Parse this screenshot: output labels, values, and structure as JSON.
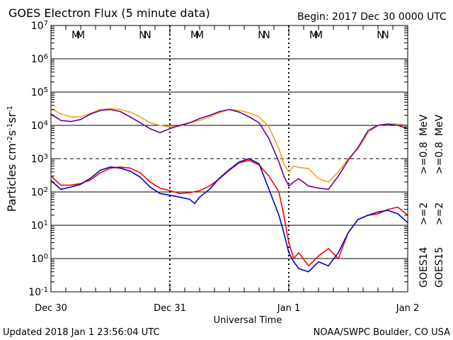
{
  "header": {
    "title": "GOES Electron Flux (5 minute data)",
    "begin": "Begin: 2017 Dec 30 0000 UTC"
  },
  "footer": {
    "updated": "Updated 2018 Jan  1 23:56:04 UTC",
    "credit": "NOAA/SWPC Boulder, CO USA"
  },
  "colors": {
    "goes14_ge2": "#ff0000",
    "goes15_ge2": "#0000cc",
    "goes14_ge08": "#f0a020",
    "goes15_ge08": "#660099",
    "eclipse_m": "#0000cc",
    "eclipse_n": "#0000cc",
    "eclipse_m2": "#ff0000",
    "eclipse_n2": "#ff0000"
  },
  "chart_data": {
    "type": "line",
    "title": "GOES Electron Flux (5 minute data)",
    "xlabel": "Universal Time",
    "ylabel": "Particles cm-2s-1sr-1",
    "y_scale": "log",
    "ylim": [
      0.1,
      10000000
    ],
    "xlim": [
      "2017-12-30 00:00",
      "2018-01-02 00:00"
    ],
    "y_ticks": [
      "10^-1",
      "10^0",
      "10^1",
      "10^2",
      "10^3",
      "10^4",
      "10^5",
      "10^6",
      "10^7"
    ],
    "x_ticks": [
      "Dec 30",
      "Dec 31",
      "Jan 1",
      "Jan 2"
    ],
    "threshold_line": 1000,
    "grid": "horizontal decade lines",
    "legend_position": "right",
    "eclipse_markers": [
      {
        "label": "M",
        "color": "blue",
        "time": "2017-12-30 05:00"
      },
      {
        "label": "M",
        "color": "red",
        "time": "2017-12-30 06:00"
      },
      {
        "label": "N",
        "color": "blue",
        "time": "2017-12-30 18:30"
      },
      {
        "label": "N",
        "color": "red",
        "time": "2017-12-30 19:30"
      },
      {
        "label": "M",
        "color": "blue",
        "time": "2017-12-31 05:00"
      },
      {
        "label": "M",
        "color": "red",
        "time": "2017-12-31 06:00"
      },
      {
        "label": "N",
        "color": "blue",
        "time": "2017-12-31 18:30"
      },
      {
        "label": "N",
        "color": "red",
        "time": "2017-12-31 19:30"
      },
      {
        "label": "M",
        "color": "blue",
        "time": "2018-01-01 05:00"
      },
      {
        "label": "M",
        "color": "red",
        "time": "2018-01-01 06:00"
      },
      {
        "label": "N",
        "color": "blue",
        "time": "2018-01-01 18:30"
      },
      {
        "label": "N",
        "color": "red",
        "time": "2018-01-01 19:30"
      }
    ],
    "legend": [
      {
        "satellite": "GOES14",
        "channel": ">=2",
        "unit": "MeV",
        "color": "#ff0000"
      },
      {
        "satellite": "GOES15",
        "channel": ">=2",
        "unit": "MeV",
        "color": "#0000cc"
      },
      {
        "satellite": "GOES14",
        "channel": ">=0.8",
        "unit": "MeV",
        "color": "#f0a020"
      },
      {
        "satellite": "GOES15",
        "channel": ">=0.8",
        "unit": "MeV",
        "color": "#660099"
      }
    ],
    "series": [
      {
        "name": "GOES14 >=2 MeV",
        "color": "#ff0000",
        "hours": [
          0,
          2,
          4,
          6,
          8,
          10,
          12,
          14,
          16,
          18,
          20,
          22,
          24,
          26,
          28,
          30,
          32,
          34,
          36,
          38,
          40,
          42,
          44,
          46,
          47,
          48,
          49,
          50,
          52,
          54,
          56,
          58,
          60,
          62,
          64,
          66,
          68,
          70,
          72
        ],
        "values": [
          300,
          160,
          160,
          180,
          230,
          380,
          520,
          560,
          520,
          380,
          200,
          130,
          110,
          90,
          95,
          110,
          150,
          250,
          450,
          750,
          900,
          650,
          300,
          100,
          20,
          3,
          1,
          1.5,
          0.6,
          1.2,
          2,
          1,
          6,
          15,
          20,
          22,
          30,
          35,
          20
        ]
      },
      {
        "name": "GOES15 >=2 MeV",
        "color": "#0000cc",
        "hours": [
          0,
          2,
          4,
          6,
          8,
          10,
          12,
          14,
          16,
          18,
          20,
          22,
          24,
          26,
          28,
          29,
          30,
          32,
          34,
          36,
          38,
          40,
          42,
          44,
          46,
          47,
          48,
          49,
          50,
          52,
          54,
          56,
          58,
          60,
          62,
          64,
          66,
          68,
          70,
          72
        ],
        "values": [
          220,
          120,
          140,
          170,
          260,
          450,
          560,
          520,
          420,
          280,
          140,
          90,
          80,
          70,
          60,
          45,
          70,
          120,
          260,
          470,
          800,
          1000,
          700,
          120,
          20,
          6,
          1.5,
          0.8,
          0.5,
          0.4,
          0.8,
          0.6,
          1.5,
          6,
          15,
          20,
          25,
          28,
          22,
          12
        ]
      },
      {
        "name": "GOES14 >=0.8 MeV",
        "color": "#f0a020",
        "hours": [
          0,
          2,
          4,
          6,
          8,
          10,
          12,
          14,
          16,
          18,
          20,
          22,
          24,
          26,
          28,
          30,
          32,
          34,
          36,
          38,
          40,
          42,
          44,
          46,
          47,
          48,
          49,
          50,
          52,
          54,
          56,
          58,
          60,
          62,
          64,
          66,
          68,
          70,
          72
        ],
        "values": [
          32000,
          22000,
          18000,
          18000,
          23000,
          30000,
          32000,
          30000,
          25000,
          18000,
          12000,
          10000,
          9000,
          9500,
          12000,
          14000,
          18000,
          24000,
          30000,
          28000,
          24000,
          18000,
          9000,
          2000,
          700,
          400,
          600,
          550,
          500,
          250,
          200,
          400,
          1000,
          2000,
          6000,
          10000,
          11000,
          11000,
          10000
        ]
      },
      {
        "name": "GOES15 >=0.8 MeV",
        "color": "#660099",
        "hours": [
          0,
          2,
          4,
          6,
          8,
          10,
          12,
          14,
          16,
          18,
          20,
          22,
          24,
          26,
          28,
          30,
          32,
          34,
          36,
          38,
          40,
          42,
          44,
          46,
          47,
          48,
          49,
          50,
          52,
          54,
          56,
          58,
          60,
          62,
          64,
          66,
          68,
          70,
          72
        ],
        "values": [
          22000,
          14000,
          13000,
          15000,
          22000,
          28000,
          30000,
          26000,
          18000,
          12000,
          8000,
          6000,
          8000,
          10000,
          12000,
          16000,
          20000,
          26000,
          30000,
          25000,
          18000,
          12000,
          4000,
          800,
          300,
          150,
          200,
          250,
          150,
          130,
          120,
          300,
          900,
          2200,
          7000,
          10000,
          11000,
          10000,
          8000
        ]
      }
    ]
  }
}
